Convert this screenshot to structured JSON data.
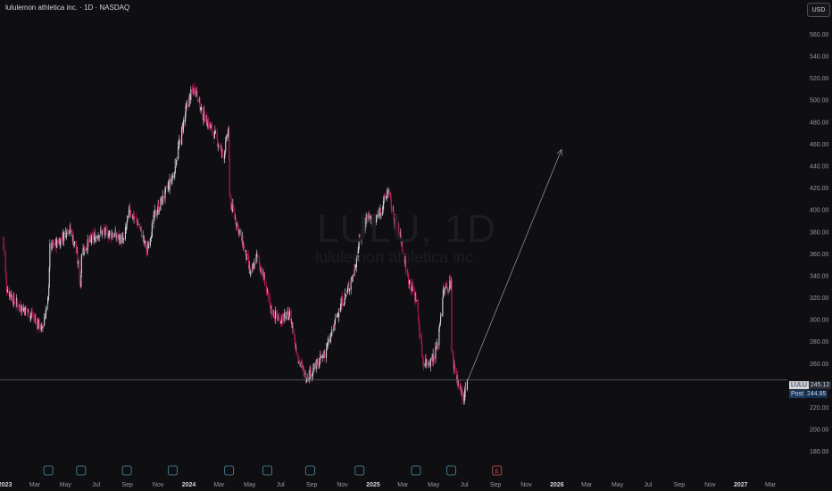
{
  "header": {
    "title": "lululemon athletica inc. · 1D · NASDAQ",
    "currency": "USD"
  },
  "watermark": {
    "symbol": "LULU, 1D",
    "name": "lululemon athletica inc."
  },
  "price_tags": {
    "last_symbol": "LULU",
    "last_value": "245.12",
    "post_label": "Post",
    "post_value": "244.85"
  },
  "colors": {
    "background": "#0f0f12",
    "up": "#d1d4dc",
    "down": "#c2185b",
    "arrow": "#8a8d95",
    "price_line": "#5d606b"
  },
  "chart_data": {
    "type": "candlestick",
    "yaxis_ticks": [
      180,
      200,
      220,
      240,
      260,
      280,
      300,
      320,
      340,
      360,
      380,
      400,
      420,
      440,
      460,
      480,
      500,
      520,
      540,
      560
    ],
    "ylim": [
      170,
      575
    ],
    "x_ticks": [
      {
        "date": "2023-01-01",
        "label": "2023",
        "year": true
      },
      {
        "date": "2023-03-01",
        "label": "Mar"
      },
      {
        "date": "2023-05-01",
        "label": "May"
      },
      {
        "date": "2023-07-01",
        "label": "Jul"
      },
      {
        "date": "2023-09-01",
        "label": "Sep"
      },
      {
        "date": "2023-11-01",
        "label": "Nov"
      },
      {
        "date": "2024-01-01",
        "label": "2024",
        "year": true
      },
      {
        "date": "2024-03-01",
        "label": "Mar"
      },
      {
        "date": "2024-05-01",
        "label": "May"
      },
      {
        "date": "2024-07-01",
        "label": "Jul"
      },
      {
        "date": "2024-09-01",
        "label": "Sep"
      },
      {
        "date": "2024-11-01",
        "label": "Nov"
      },
      {
        "date": "2025-01-01",
        "label": "2025",
        "year": true
      },
      {
        "date": "2025-03-01",
        "label": "Mar"
      },
      {
        "date": "2025-05-01",
        "label": "May"
      },
      {
        "date": "2025-07-01",
        "label": "Jul"
      },
      {
        "date": "2025-09-01",
        "label": "Sep"
      },
      {
        "date": "2025-11-01",
        "label": "Nov"
      },
      {
        "date": "2026-01-01",
        "label": "2026",
        "year": true
      },
      {
        "date": "2026-03-01",
        "label": "Mar"
      },
      {
        "date": "2026-05-01",
        "label": "May"
      },
      {
        "date": "2026-07-01",
        "label": "Jul"
      },
      {
        "date": "2026-09-01",
        "label": "Sep"
      },
      {
        "date": "2026-11-01",
        "label": "Nov"
      },
      {
        "date": "2027-01-01",
        "label": "2027",
        "year": true
      },
      {
        "date": "2027-03-01",
        "label": "Mar"
      }
    ],
    "price_path": [
      [
        "2022-12-28",
        375
      ],
      [
        "2023-01-04",
        330
      ],
      [
        "2023-01-18",
        318
      ],
      [
        "2023-02-01",
        312
      ],
      [
        "2023-02-22",
        305
      ],
      [
        "2023-03-15",
        292
      ],
      [
        "2023-03-28",
        318
      ],
      [
        "2023-03-31",
        365
      ],
      [
        "2023-04-20",
        372
      ],
      [
        "2023-05-08",
        385
      ],
      [
        "2023-05-22",
        365
      ],
      [
        "2023-05-31",
        330
      ],
      [
        "2023-06-02",
        362
      ],
      [
        "2023-06-20",
        372
      ],
      [
        "2023-07-10",
        380
      ],
      [
        "2023-08-01",
        378
      ],
      [
        "2023-08-25",
        372
      ],
      [
        "2023-09-05",
        400
      ],
      [
        "2023-09-25",
        385
      ],
      [
        "2023-10-10",
        362
      ],
      [
        "2023-10-25",
        395
      ],
      [
        "2023-11-10",
        410
      ],
      [
        "2023-11-30",
        430
      ],
      [
        "2023-12-15",
        465
      ],
      [
        "2023-12-26",
        490
      ],
      [
        "2024-01-05",
        505
      ],
      [
        "2024-01-15",
        512
      ],
      [
        "2024-01-25",
        490
      ],
      [
        "2024-02-10",
        478
      ],
      [
        "2024-02-28",
        462
      ],
      [
        "2024-03-10",
        448
      ],
      [
        "2024-03-20",
        475
      ],
      [
        "2024-03-22",
        410
      ],
      [
        "2024-04-05",
        388
      ],
      [
        "2024-04-20",
        365
      ],
      [
        "2024-05-03",
        340
      ],
      [
        "2024-05-15",
        358
      ],
      [
        "2024-05-31",
        335
      ],
      [
        "2024-06-10",
        310
      ],
      [
        "2024-06-28",
        300
      ],
      [
        "2024-07-20",
        305
      ],
      [
        "2024-08-05",
        265
      ],
      [
        "2024-08-20",
        248
      ],
      [
        "2024-09-05",
        255
      ],
      [
        "2024-09-25",
        268
      ],
      [
        "2024-10-10",
        285
      ],
      [
        "2024-10-25",
        310
      ],
      [
        "2024-11-10",
        325
      ],
      [
        "2024-11-25",
        345
      ],
      [
        "2024-12-06",
        375
      ],
      [
        "2024-12-20",
        395
      ],
      [
        "2025-01-05",
        388
      ],
      [
        "2025-01-20",
        405
      ],
      [
        "2025-01-31",
        418
      ],
      [
        "2025-02-10",
        395
      ],
      [
        "2025-02-25",
        375
      ],
      [
        "2025-03-10",
        340
      ],
      [
        "2025-03-28",
        318
      ],
      [
        "2025-04-03",
        290
      ],
      [
        "2025-04-10",
        262
      ],
      [
        "2025-04-25",
        262
      ],
      [
        "2025-05-08",
        275
      ],
      [
        "2025-05-20",
        325
      ],
      [
        "2025-06-05",
        335
      ],
      [
        "2025-06-06",
        268
      ],
      [
        "2025-06-20",
        240
      ],
      [
        "2025-06-30",
        228
      ],
      [
        "2025-07-08",
        245
      ]
    ],
    "annotations": [
      {
        "type": "arrow",
        "from": [
          "2025-07-08",
          245
        ],
        "to": [
          "2026-01-10",
          455
        ]
      },
      {
        "type": "hline",
        "y": 245.12
      },
      {
        "type": "earnings_marks",
        "dates": [
          "2023-03-28",
          "2023-06-01",
          "2023-08-31",
          "2023-11-30",
          "2024-03-21",
          "2024-06-05",
          "2024-08-29",
          "2024-12-05",
          "2025-03-27",
          "2025-06-05",
          "2025-09-04"
        ],
        "last_label": "E"
      }
    ]
  }
}
